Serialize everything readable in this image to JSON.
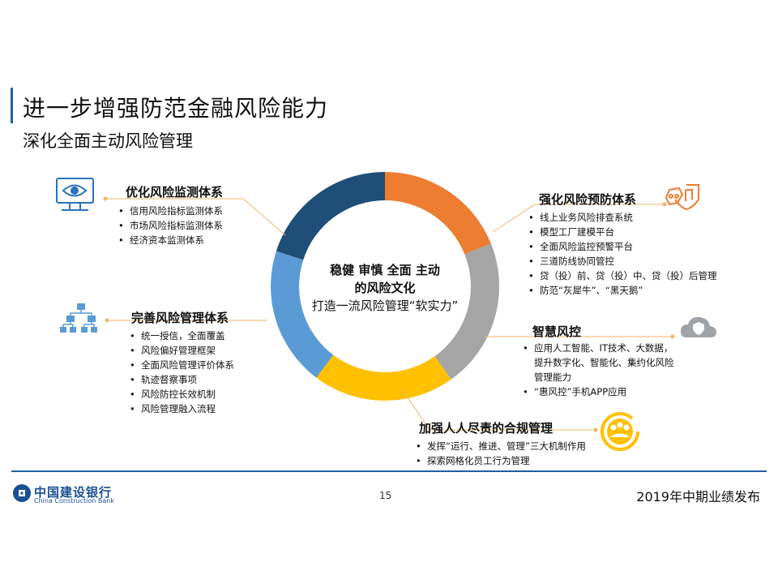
{
  "title": "进一步增强防范金融风险能力",
  "subtitle": "深化全面主动风险管理",
  "center": {
    "line1": "稳健 审慎 全面 主动",
    "line2": "的风险文化",
    "line3": "打造一流风险管理“软实力”"
  },
  "sections": {
    "monitoring": {
      "heading": "优化风险监测体系",
      "icon": "monitor-eye-icon",
      "items": [
        "信用风险指标监测体系",
        "市场风险指标监测体系",
        "经济资本监测体系"
      ]
    },
    "management": {
      "heading": "完善风险管理体系",
      "icon": "hierarchy-icon",
      "items": [
        "统一授信，全面覆盖",
        "风险偏好管理框架",
        "全面风险管理评价体系",
        "轨迹督察事项",
        "风险防控长效机制",
        "风险管理融入流程"
      ]
    },
    "prevention": {
      "heading": "强化风险预防体系",
      "icon": "shield-hand-icon",
      "items": [
        "线上业务风险排查系统",
        "模型工厂建模平台",
        "全面风险监控预警平台",
        "三道防线协同管控",
        "贷（投）前、贷（投）中、贷（投）后管理",
        "防范“灰犀牛”、“黑天鹅”"
      ]
    },
    "smart": {
      "heading": "智慧风控",
      "icon": "cloud-shield-icon",
      "items": [
        "应用人工智能、IT技术、大数据，提升数字化、智能化、集约化风险管理能力",
        "“惠风控”手机APP应用"
      ]
    },
    "compliance": {
      "heading": "加强人人尽责的合规管理",
      "icon": "team-circle-icon",
      "items": [
        "发挥“运行、推进、管理”三大机制作用",
        "探索网格化员工行为管理"
      ]
    }
  },
  "footer": {
    "logo_cn": "中国建设银行",
    "logo_en": "China Construction Bank",
    "page_number": "15",
    "event": "2019年中期业绩发布"
  },
  "colors": {
    "accent_blue": "#1f5fa6",
    "orange": "#ed7d31",
    "gray": "#a5a5a5",
    "yellow": "#ffc000",
    "light_blue": "#5b9bd5",
    "dark_blue": "#1f4e79",
    "connector": "#f2b66d"
  }
}
